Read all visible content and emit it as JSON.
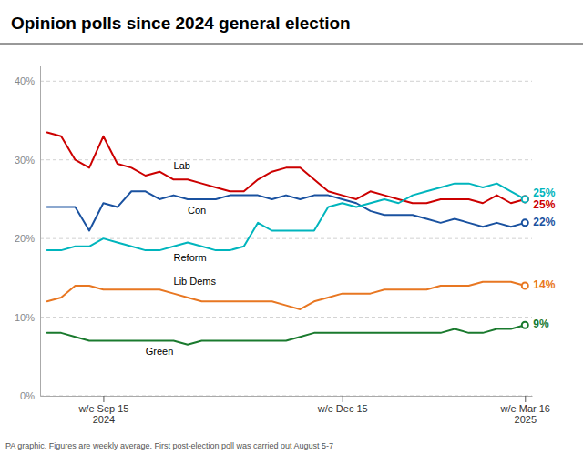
{
  "chart_data": {
    "type": "line",
    "title": "Opinion polls since 2024 general election",
    "subtitle": "PA graphic. Figures are weekly average. First post-election poll was carried out August 5-7",
    "categories": [
      null,
      null,
      null,
      null,
      "w/e Sep 15\n2024",
      null,
      null,
      null,
      null,
      null,
      null,
      null,
      null,
      null,
      null,
      null,
      null,
      null,
      null,
      null,
      null,
      "w/e Dec 15",
      null,
      null,
      null,
      null,
      null,
      null,
      null,
      null,
      null,
      null,
      null,
      null,
      "w/e Mar 16\n2025"
    ],
    "ylim": [
      0,
      42
    ],
    "yticks": [
      {
        "value": 0,
        "label": "0%"
      },
      {
        "value": 10,
        "label": "10%"
      },
      {
        "value": 20,
        "label": "20%"
      },
      {
        "value": 30,
        "label": "30%"
      },
      {
        "value": 40,
        "label": "40%"
      }
    ],
    "grid": true,
    "series": [
      {
        "name": "Lab",
        "color": "#cc0000",
        "values": [
          33.5,
          33.0,
          30.0,
          29.0,
          33.0,
          29.5,
          29.0,
          28.0,
          28.5,
          27.5,
          27.5,
          27.0,
          26.5,
          26.0,
          26.0,
          27.5,
          28.5,
          29.0,
          29.0,
          27.5,
          26.0,
          25.5,
          25.0,
          26.0,
          25.5,
          25.0,
          24.5,
          24.5,
          25.0,
          25.0,
          25.0,
          24.5,
          25.5,
          24.5,
          25.0
        ],
        "value_labels": [
          null,
          null,
          null,
          null,
          null,
          null,
          null,
          null,
          null,
          null,
          null,
          null,
          null,
          null,
          null,
          null,
          null,
          null,
          null,
          null,
          null,
          null,
          null,
          null,
          null,
          null,
          null,
          null,
          null,
          null,
          null,
          null,
          null,
          null,
          "25%"
        ]
      },
      {
        "name": "Con",
        "color": "#1a52a0",
        "values": [
          24.0,
          24.0,
          24.0,
          21.0,
          24.5,
          24.0,
          26.0,
          26.0,
          25.0,
          25.5,
          25.0,
          25.0,
          25.0,
          25.5,
          25.5,
          25.5,
          25.0,
          25.5,
          25.0,
          25.5,
          25.5,
          25.0,
          24.5,
          23.5,
          23.0,
          23.0,
          23.0,
          22.5,
          22.0,
          22.5,
          22.0,
          21.5,
          22.0,
          21.5,
          22.0
        ],
        "value_labels": [
          null,
          null,
          null,
          null,
          null,
          null,
          null,
          null,
          null,
          null,
          null,
          null,
          null,
          null,
          null,
          null,
          null,
          null,
          null,
          null,
          null,
          null,
          null,
          null,
          null,
          null,
          null,
          null,
          null,
          null,
          null,
          null,
          null,
          null,
          "22%"
        ]
      },
      {
        "name": "Reform",
        "color": "#00b5bd",
        "values": [
          18.5,
          18.5,
          19.0,
          19.0,
          20.0,
          19.5,
          19.0,
          18.5,
          18.5,
          19.0,
          19.5,
          19.0,
          18.5,
          18.5,
          19.0,
          22.0,
          21.0,
          21.0,
          21.0,
          21.0,
          24.0,
          24.5,
          24.0,
          24.5,
          25.0,
          24.5,
          25.5,
          26.0,
          26.5,
          27.0,
          27.0,
          26.5,
          27.0,
          26.0,
          25.0
        ],
        "value_labels": [
          null,
          null,
          null,
          null,
          null,
          null,
          null,
          null,
          null,
          null,
          null,
          null,
          null,
          null,
          null,
          null,
          null,
          null,
          null,
          null,
          null,
          null,
          null,
          null,
          null,
          null,
          null,
          null,
          null,
          null,
          null,
          null,
          null,
          null,
          "25%"
        ]
      },
      {
        "name": "Lib Dems",
        "color": "#e87722",
        "values": [
          12.0,
          12.5,
          14.0,
          14.0,
          13.5,
          13.5,
          13.5,
          13.5,
          13.5,
          13.0,
          12.5,
          12.0,
          12.0,
          12.0,
          12.0,
          12.0,
          12.0,
          11.5,
          11.0,
          12.0,
          12.5,
          13.0,
          13.0,
          13.0,
          13.5,
          13.5,
          13.5,
          13.5,
          14.0,
          14.0,
          14.0,
          14.5,
          14.5,
          14.5,
          14.0
        ],
        "value_labels": [
          null,
          null,
          null,
          null,
          null,
          null,
          null,
          null,
          null,
          null,
          null,
          null,
          null,
          null,
          null,
          null,
          null,
          null,
          null,
          null,
          null,
          null,
          null,
          null,
          null,
          null,
          null,
          null,
          null,
          null,
          null,
          null,
          null,
          null,
          "14%"
        ]
      },
      {
        "name": "Green",
        "color": "#1a7a2e",
        "values": [
          8.0,
          8.0,
          7.5,
          7.0,
          7.0,
          7.0,
          7.0,
          7.0,
          7.0,
          7.0,
          6.5,
          7.0,
          7.0,
          7.0,
          7.0,
          7.0,
          7.0,
          7.0,
          7.5,
          8.0,
          8.0,
          8.0,
          8.0,
          8.0,
          8.0,
          8.0,
          8.0,
          8.0,
          8.0,
          8.5,
          8.0,
          8.0,
          8.5,
          8.5,
          9.0
        ],
        "value_labels": [
          null,
          null,
          null,
          null,
          null,
          null,
          null,
          null,
          null,
          null,
          null,
          null,
          null,
          null,
          null,
          null,
          null,
          null,
          null,
          null,
          null,
          null,
          null,
          null,
          null,
          null,
          null,
          null,
          null,
          null,
          null,
          null,
          null,
          null,
          "9%"
        ]
      }
    ]
  }
}
